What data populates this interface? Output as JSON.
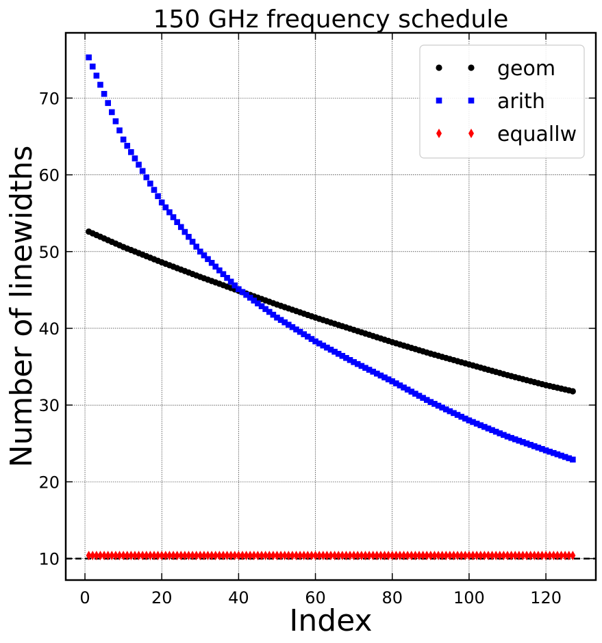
{
  "chart_data": {
    "type": "scatter",
    "title": "150 GHz frequency schedule",
    "xlabel": "Index",
    "ylabel": "Number of linewidths",
    "xlim": [
      -5,
      133
    ],
    "ylim": [
      7.2,
      78.5
    ],
    "x_ticks": [
      0,
      20,
      40,
      60,
      80,
      100,
      120
    ],
    "y_ticks": [
      10,
      20,
      30,
      40,
      50,
      60,
      70
    ],
    "grid": true,
    "legend_position": "top-right",
    "reference_line": {
      "y": 10,
      "style": "dashed",
      "color": "#000000"
    },
    "x_range": [
      1,
      127
    ],
    "series": [
      {
        "name": "geom",
        "marker": "circle",
        "color": "#000000",
        "x": [
          1,
          10,
          20,
          30,
          40,
          50,
          60,
          70,
          80,
          90,
          100,
          110,
          120,
          127
        ],
        "y": [
          52.6,
          50.6,
          48.6,
          46.7,
          44.9,
          43.1,
          41.4,
          39.8,
          38.2,
          36.7,
          35.3,
          33.9,
          32.6,
          31.8
        ]
      },
      {
        "name": "arith",
        "marker": "square",
        "color": "#0000ff",
        "x": [
          1,
          10,
          20,
          30,
          40,
          50,
          60,
          70,
          80,
          90,
          100,
          110,
          120,
          127
        ],
        "y": [
          75.3,
          64.6,
          56.4,
          50.0,
          45.1,
          41.4,
          38.3,
          35.6,
          33.1,
          30.4,
          28.0,
          25.9,
          24.1,
          22.9
        ]
      },
      {
        "name": "equallw",
        "marker": "diamond",
        "color": "#ff0000",
        "x": [
          1,
          127
        ],
        "y": [
          10.4,
          10.4
        ]
      }
    ]
  }
}
